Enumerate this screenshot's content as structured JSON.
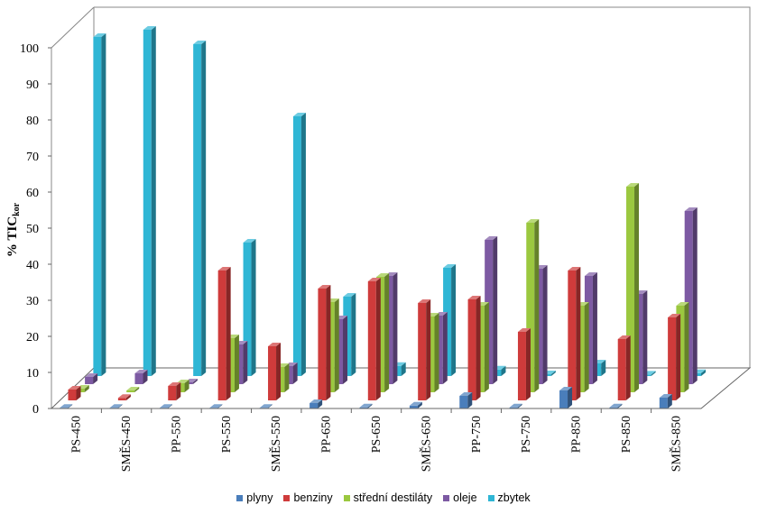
{
  "chart_data": {
    "type": "bar",
    "title": "",
    "xlabel": "",
    "ylabel": "% TIC",
    "ylabel_subscript": "kor",
    "ylim": [
      0,
      100
    ],
    "yticks": [
      0,
      10,
      20,
      30,
      40,
      50,
      60,
      70,
      80,
      90,
      100
    ],
    "categories": [
      "PS-450",
      "SMĚS-450",
      "PP-550",
      "PS-550",
      "SMĚS-550",
      "PP-650",
      "PS-650",
      "SMĚS-650",
      "PP-750",
      "PS-750",
      "PP-850",
      "PS-850",
      "SMĚS-850"
    ],
    "series": [
      {
        "name": "plyny",
        "color": "#4a7ebb",
        "values": [
          0.2,
          0.2,
          0.2,
          0.2,
          0.2,
          1.5,
          0.3,
          0.8,
          3.5,
          0.3,
          5.0,
          0.3,
          3.0
        ]
      },
      {
        "name": "benziny",
        "color": "#cf3b3b",
        "values": [
          3.0,
          0.7,
          4.0,
          36.0,
          15.0,
          31.0,
          33.0,
          27.0,
          28.0,
          19.0,
          36.0,
          17.0,
          23.0
        ]
      },
      {
        "name": "střední destiláty",
        "color": "#9bc83f",
        "values": [
          1.0,
          0.5,
          2.5,
          15.0,
          7.0,
          25.0,
          32.0,
          21.0,
          24.0,
          47.0,
          24.0,
          57.0,
          24.0
        ]
      },
      {
        "name": "oleje",
        "color": "#7d5aa3",
        "values": [
          2.0,
          3.0,
          0.5,
          11.0,
          5.0,
          18.0,
          30.0,
          19.0,
          40.0,
          32.0,
          30.0,
          25.0,
          48.0
        ]
      },
      {
        "name": "zbytek",
        "color": "#2fb6d5",
        "values": [
          94.0,
          96.0,
          92.0,
          37.0,
          72.0,
          22.0,
          2.8,
          30.0,
          1.8,
          0.5,
          3.5,
          0.4,
          0.8
        ]
      }
    ],
    "grid": false,
    "legend_position": "bottom"
  }
}
